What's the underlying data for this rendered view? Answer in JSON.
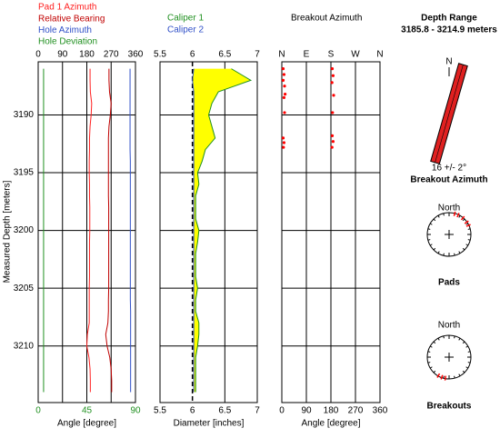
{
  "depth_axis": {
    "label": "Measured Depth [meters]",
    "ylim": [
      3185.4,
      3214.9
    ],
    "yticks": [
      3190,
      3195,
      3200,
      3205,
      3210
    ]
  },
  "chart_data": [
    {
      "type": "line",
      "xlabel": "Angle [degree]",
      "xlim": [
        0,
        360
      ],
      "xticks": [
        0,
        90,
        180,
        270,
        360
      ],
      "x2lim": [
        0,
        90
      ],
      "x2ticks": [
        0,
        45,
        90
      ],
      "depth": [
        3186,
        3187,
        3188,
        3189,
        3190,
        3191,
        3192,
        3193,
        3194,
        3195,
        3196,
        3197,
        3198,
        3199,
        3200,
        3201,
        3202,
        3203,
        3204,
        3205,
        3206,
        3207,
        3208,
        3209,
        3210,
        3211,
        3212,
        3213,
        3214
      ],
      "series": [
        {
          "name": "Pad 1 Azimuth",
          "color": "#ff2020",
          "values": [
            192,
            192,
            193,
            198,
            196,
            192,
            190,
            190,
            189,
            189,
            190,
            190,
            191,
            191,
            191,
            190,
            190,
            190,
            190,
            189,
            189,
            189,
            189,
            182,
            180,
            188,
            192,
            193,
            193
          ]
        },
        {
          "name": "Relative Bearing",
          "color": "#c00000",
          "values": [
            262,
            262,
            264,
            270,
            267,
            262,
            260,
            260,
            260,
            260,
            260,
            260,
            261,
            261,
            261,
            261,
            261,
            261,
            261,
            261,
            260,
            260,
            258,
            250,
            255,
            265,
            270,
            272,
            272
          ]
        },
        {
          "name": "Hole Azimuth",
          "color": "#3050c8",
          "values": [
            340,
            340,
            340,
            340,
            340,
            340,
            340,
            340,
            341,
            341,
            341,
            341,
            341,
            341,
            341,
            341,
            341,
            341,
            341,
            341,
            341,
            342,
            342,
            342,
            342,
            342,
            342,
            342,
            342
          ]
        },
        {
          "name": "Hole Deviation",
          "color": "#209020",
          "axis": "x2",
          "values": [
            5,
            5,
            5,
            5,
            5,
            5,
            5,
            5,
            5,
            5,
            5,
            5,
            5,
            5,
            5,
            5,
            5,
            5,
            5,
            5,
            5,
            5,
            5,
            5,
            5,
            5,
            5,
            5,
            5
          ]
        }
      ]
    },
    {
      "type": "area-between",
      "xlabel": "Diameter [inches]",
      "xlim": [
        5.5,
        7
      ],
      "xticks": [
        5.5,
        6,
        6.5,
        7
      ],
      "reference": 6,
      "fill_color": "#ffff00",
      "depth": [
        3186,
        3187,
        3188,
        3189,
        3190,
        3191,
        3192,
        3193,
        3194,
        3195,
        3196,
        3197,
        3198,
        3199,
        3200,
        3201,
        3202,
        3203,
        3204,
        3205,
        3206,
        3207,
        3208,
        3209,
        3210,
        3211,
        3212,
        3213,
        3214
      ],
      "series": [
        {
          "name": "Caliper 1",
          "color": "#209020",
          "values": [
            6.6,
            6.9,
            6.4,
            6.3,
            6.25,
            6.3,
            6.35,
            6.2,
            6.15,
            6.08,
            6.1,
            6.05,
            6.05,
            6.05,
            6.1,
            6.08,
            6.05,
            6.05,
            6.05,
            6.08,
            6.05,
            6.05,
            6.1,
            6.1,
            6.08,
            6.05,
            6.05,
            6.05,
            6.05
          ]
        },
        {
          "name": "Caliper 2",
          "color": "#3050c8",
          "values": [
            6.02,
            6.0,
            6.02,
            6.02,
            6.02,
            6.02,
            6.02,
            6.02,
            6.02,
            6.02,
            6.02,
            6.02,
            6.02,
            6.02,
            6.02,
            6.02,
            6.02,
            6.02,
            6.02,
            6.02,
            6.02,
            6.02,
            6.02,
            6.02,
            6.02,
            6.02,
            6.02,
            6.02,
            6.02
          ]
        }
      ]
    },
    {
      "type": "scatter",
      "title": "Breakout Azimuth",
      "xlabel": "Angle [degree]",
      "xlim": [
        0,
        360
      ],
      "xticks": [
        {
          "value": 0,
          "label": "N"
        },
        {
          "value": 90,
          "label": "E"
        },
        {
          "value": 180,
          "label": "S"
        },
        {
          "value": 270,
          "label": "W"
        },
        {
          "value": 360,
          "label": "N"
        }
      ],
      "x2lim": [
        0,
        360
      ],
      "x2ticks": [
        0,
        90,
        180,
        270,
        360
      ],
      "color": "#ff0000",
      "depth": [
        3186,
        3186.5,
        3187,
        3187.5,
        3188.2,
        3188.5,
        3189.8,
        3192,
        3192.4,
        3192.8,
        3186,
        3186.6,
        3187.2,
        3188.3,
        3189.8,
        3191.8,
        3192.3,
        3192.8
      ],
      "values": [
        5,
        8,
        5,
        10,
        12,
        8,
        10,
        5,
        8,
        6,
        185,
        188,
        184,
        190,
        186,
        185,
        188,
        184
      ]
    }
  ],
  "summary": {
    "title": "Depth Range",
    "range": "3185.8 - 3214.9 meters",
    "north": "N",
    "breakout_azimuth": 16,
    "azimuth_label": "16 +/- 2°",
    "azimuth_title": "Breakout Azimuth",
    "pads": {
      "north": "North",
      "label": "Pads",
      "directions": [
        15,
        25,
        40,
        55,
        65
      ]
    },
    "breakouts": {
      "north": "North",
      "label": "Breakouts",
      "directions": [
        190,
        200,
        210
      ]
    }
  }
}
